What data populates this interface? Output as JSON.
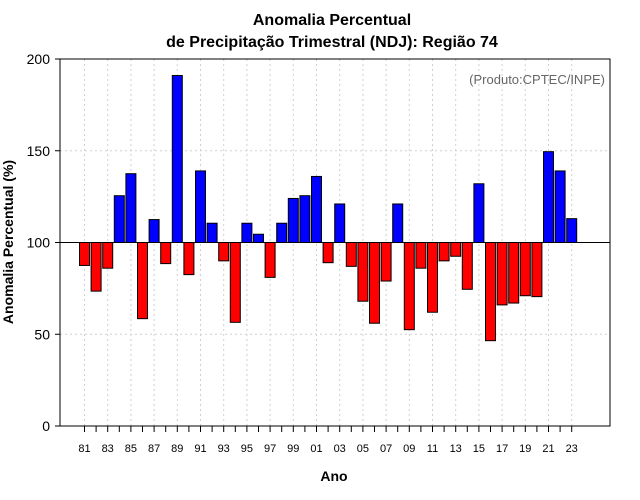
{
  "chart_data": {
    "type": "bar",
    "title": [
      "Anomalia Percentual",
      "de Precipitação Trimestral (NDJ): Região 74"
    ],
    "xlabel": "Ano",
    "ylabel": "Anomalia Percentual (%)",
    "annotation": "(Produto:CPTEC/INPE)",
    "ylim": [
      0,
      200
    ],
    "yticks": [
      0,
      50,
      100,
      150,
      200
    ],
    "baseline": 100,
    "grid": true,
    "xtick_labels": [
      "81",
      "83",
      "85",
      "87",
      "89",
      "91",
      "93",
      "95",
      "97",
      "99",
      "01",
      "03",
      "05",
      "07",
      "09",
      "11",
      "13",
      "15",
      "17",
      "19",
      "21",
      "23"
    ],
    "categories": [
      "1981",
      "1982",
      "1983",
      "1984",
      "1985",
      "1986",
      "1987",
      "1988",
      "1989",
      "1990",
      "1991",
      "1992",
      "1993",
      "1994",
      "1995",
      "1996",
      "1997",
      "1998",
      "1999",
      "2000",
      "2001",
      "2002",
      "2003",
      "2004",
      "2005",
      "2006",
      "2007",
      "2008",
      "2009",
      "2010",
      "2011",
      "2012",
      "2013",
      "2014",
      "2015",
      "2016",
      "2017",
      "2018",
      "2019",
      "2020",
      "2021",
      "2022",
      "2023"
    ],
    "values": [
      87.5,
      73.5,
      86,
      125.5,
      137.5,
      58.5,
      112.5,
      88.5,
      191,
      82.5,
      139,
      110.5,
      90,
      56.5,
      110.5,
      104.5,
      81,
      110.5,
      124,
      125.5,
      136,
      89,
      121,
      87,
      68,
      56,
      79,
      121,
      52.5,
      86,
      62,
      90,
      92.5,
      74.5,
      132,
      46.5,
      66,
      67,
      71,
      70.5,
      149.5,
      139,
      113
    ],
    "colors": {
      "above": "#0000ff",
      "below": "#ff0000",
      "grid": "#d0d0d0",
      "axis": "#000000",
      "annotation": "#666666"
    }
  }
}
